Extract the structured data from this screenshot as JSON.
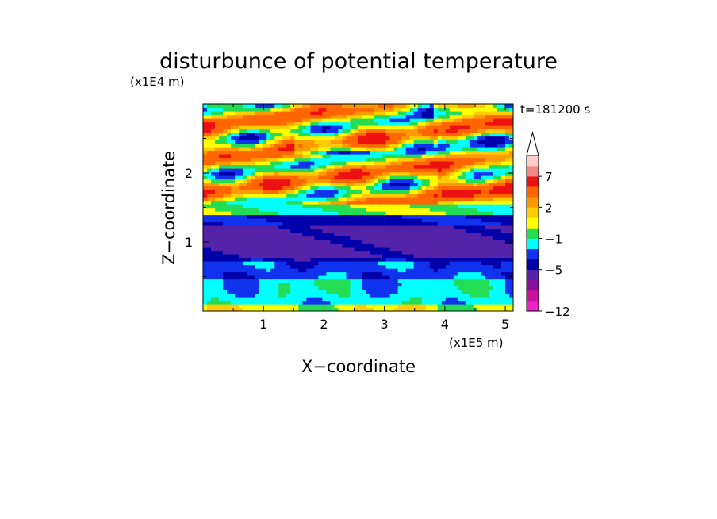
{
  "chart_data": {
    "type": "heatmap",
    "title": "disturbunce of potential temperature",
    "xlabel": "X−coordinate",
    "ylabel": "Z−coordinate",
    "x_units": "(x1E5 m)",
    "y_units": "(x1E4 m)",
    "time_label": "t=181200 s",
    "xlim": [
      0,
      5.13
    ],
    "ylim": [
      0,
      3.0
    ],
    "x_ticks": [
      1,
      2,
      3,
      4,
      5
    ],
    "y_ticks": [
      1,
      2
    ],
    "x_tick_labels": [
      "1",
      "2",
      "3",
      "4",
      "5"
    ],
    "y_tick_labels": [
      "1",
      "2"
    ],
    "colorbar": {
      "levels_low_to_high": [
        -12,
        -11,
        -9,
        -7,
        -5,
        -3,
        -2,
        -1,
        0,
        1,
        2,
        3,
        5,
        7,
        9,
        11
      ],
      "colors_low_to_high": [
        "#ee22cc",
        "#cc1199",
        "#881199",
        "#5522aa",
        "#0000aa",
        "#1133ee",
        "#00ffff",
        "#22dd55",
        "#ffff00",
        "#ffcc00",
        "#ff9900",
        "#ff6600",
        "#ee1111",
        "#ee8888",
        "#ffcccc"
      ],
      "extend_top": true,
      "tick_labels": [
        "7",
        "2",
        "−1",
        "−5",
        "−12"
      ],
      "tick_values": [
        7,
        2,
        -1,
        -5,
        -12
      ]
    },
    "bands": [
      {
        "z_min": 0.0,
        "z_max": 0.1,
        "value": 0.5,
        "label": "near-surface green band"
      },
      {
        "z_min": 0.1,
        "z_max": 0.45,
        "value": -1.5,
        "label": "cyan layer"
      },
      {
        "z_min": 0.45,
        "z_max": 0.7,
        "value": -2.5,
        "label": "cyan/blue mix"
      },
      {
        "z_min": 0.7,
        "z_max": 0.8,
        "value": -4,
        "label": "blue layer"
      },
      {
        "z_min": 0.8,
        "z_max": 1.25,
        "value": -5.5,
        "label": "dark blue minimum"
      },
      {
        "z_min": 1.25,
        "z_max": 1.4,
        "value": -3.5,
        "label": "blue transition"
      },
      {
        "z_min": 1.4,
        "z_max": 1.55,
        "value": -0.5,
        "label": "cyan/green transition"
      },
      {
        "z_min": 1.55,
        "z_max": 3.0,
        "value": 1.5,
        "label": "upper wave region"
      }
    ]
  }
}
